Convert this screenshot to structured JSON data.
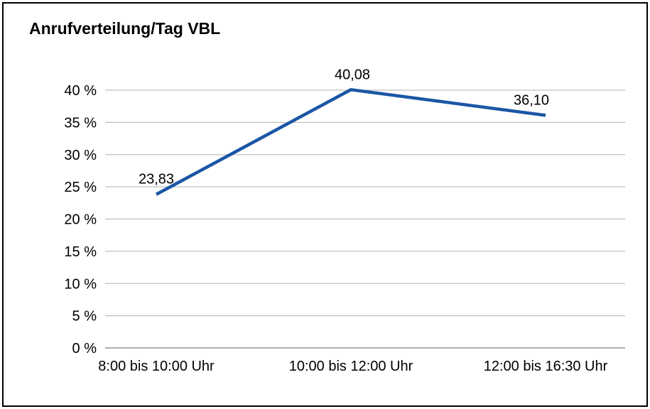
{
  "chart_data": {
    "type": "line",
    "title": "Anrufverteilung/Tag VBL",
    "categories": [
      "8:00 bis 10:00 Uhr",
      "10:00 bis 12:00 Uhr",
      "12:00 bis 16:30 Uhr"
    ],
    "values": [
      23.83,
      40.08,
      36.1
    ],
    "data_labels": [
      "23,83",
      "40,08",
      "36,10"
    ],
    "ylim": [
      0,
      40
    ],
    "ytick_step": 5,
    "ytick_labels": [
      "0 %",
      "5 %",
      "10 %",
      "15 %",
      "20 %",
      "25 %",
      "30 %",
      "35 %",
      "40 %"
    ],
    "grid": "horizontal",
    "legend": "none",
    "colors": {
      "line": "#1B56A5",
      "gridline": "#C0C0C0",
      "axis": "#808080",
      "text": "#000000",
      "background": "#FFFFFF",
      "border": "#000000"
    }
  }
}
